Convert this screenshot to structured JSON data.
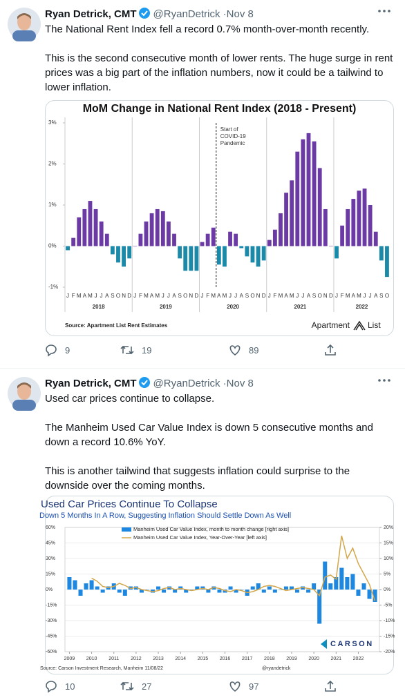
{
  "tweets": [
    {
      "author": "Ryan Detrick, CMT",
      "handle": "@RyanDetrick",
      "date": "Nov 8",
      "paragraphs": [
        "The National Rent Index fell a record 0.7% month-over-month recently.",
        "This is the second consecutive month of lower rents. The huge surge in rent prices was a big part of the inflation numbers, now it could be a tailwind to lower inflation."
      ],
      "replies": 9,
      "retweets": 19,
      "likes": 89,
      "chart": {
        "type": "bar",
        "title": "MoM Change in National Rent Index (2018 - Present)",
        "categories": [
          "J",
          "F",
          "M",
          "A",
          "M",
          "J",
          "J",
          "A",
          "S",
          "O",
          "N",
          "D",
          "J",
          "F",
          "M",
          "A",
          "M",
          "J",
          "J",
          "A",
          "S",
          "O",
          "N",
          "D",
          "J",
          "F",
          "M",
          "A",
          "M",
          "J",
          "J",
          "A",
          "S",
          "O",
          "N",
          "D",
          "J",
          "F",
          "M",
          "A",
          "M",
          "J",
          "J",
          "A",
          "S",
          "O",
          "N",
          "D",
          "J",
          "F",
          "M",
          "A",
          "M",
          "J",
          "J",
          "A",
          "S",
          "O"
        ],
        "year_labels": [
          "2018",
          "2019",
          "2020",
          "2021",
          "2022"
        ],
        "values": [
          -0.1,
          0.2,
          0.7,
          0.9,
          1.1,
          0.9,
          0.6,
          0.3,
          -0.2,
          -0.4,
          -0.5,
          -0.3,
          0.0,
          0.3,
          0.6,
          0.8,
          0.9,
          0.85,
          0.6,
          0.3,
          -0.3,
          -0.6,
          -0.6,
          -0.6,
          0.1,
          0.3,
          0.45,
          -0.45,
          -0.5,
          0.35,
          0.3,
          -0.05,
          -0.25,
          -0.4,
          -0.5,
          -0.35,
          0.15,
          0.4,
          0.8,
          1.3,
          1.6,
          2.3,
          2.6,
          2.75,
          2.55,
          1.9,
          0.9,
          0.0,
          -0.3,
          0.5,
          0.9,
          1.15,
          1.35,
          1.4,
          1.0,
          0.35,
          -0.35,
          -0.75
        ],
        "positive_color": "#6b3aa5",
        "negative_color": "#1b8aa8",
        "ylim": [
          -1,
          3
        ],
        "yticks": [
          {
            "value": -1,
            "label": "-1%"
          },
          {
            "value": 0,
            "label": "0%"
          },
          {
            "value": 1,
            "label": "1%"
          },
          {
            "value": 2,
            "label": "2%"
          },
          {
            "value": 3,
            "label": "3%"
          }
        ],
        "annotation": [
          "Start of",
          "COVID-19",
          "Pandemic"
        ],
        "source": "Source: Apartment List Rent Estimates",
        "logo": [
          "Apartment",
          "List"
        ]
      }
    },
    {
      "author": "Ryan Detrick, CMT",
      "handle": "@RyanDetrick",
      "date": "Nov 8",
      "paragraphs": [
        "Used car prices continue to collapse.",
        "The Manheim Used Car Value Index is down 5 consecutive months and down a record 10.6% YoY.",
        "This is another tailwind that suggests inflation could surprise to the downside over the coming months."
      ],
      "replies": 10,
      "retweets": 27,
      "likes": 97,
      "chart": {
        "type": "bar-line",
        "title": "Used Car Prices Continue To Collapse",
        "subtitle": "Down 5 Months In A Row, Suggesting Inflation Should Settle Down As Well",
        "x": [
          2009,
          2009.25,
          2009.5,
          2009.75,
          2010,
          2010.25,
          2010.5,
          2010.75,
          2011,
          2011.25,
          2011.5,
          2011.75,
          2012,
          2012.25,
          2012.5,
          2012.75,
          2013,
          2013.25,
          2013.5,
          2013.75,
          2014,
          2014.25,
          2014.5,
          2014.75,
          2015,
          2015.25,
          2015.5,
          2015.75,
          2016,
          2016.25,
          2016.5,
          2016.75,
          2017,
          2017.25,
          2017.5,
          2017.75,
          2018,
          2018.25,
          2018.5,
          2018.75,
          2019,
          2019.25,
          2019.5,
          2019.75,
          2020,
          2020.25,
          2020.5,
          2020.75,
          2021,
          2021.25,
          2021.5,
          2021.75,
          2022,
          2022.25,
          2022.5,
          2022.75
        ],
        "series": [
          {
            "name": "Manheim Used Car Value Index, month to month change [right axis]",
            "type": "bar",
            "axis": "y2",
            "color": "#1e87e0",
            "values": [
              4,
              3,
              -2,
              2,
              3,
              1,
              -1,
              1,
              2,
              -1,
              -2,
              1,
              1,
              -1,
              0,
              -1,
              1,
              -1,
              1,
              -1,
              1,
              -1,
              0,
              1,
              1,
              -1,
              1,
              -1,
              -1,
              1,
              -1,
              0,
              -2,
              1,
              2,
              -1,
              1,
              -1,
              0,
              1,
              1,
              -1,
              1,
              -1,
              2,
              -11,
              9,
              2,
              4,
              7,
              4,
              5,
              -2,
              2,
              -3,
              -4
            ]
          },
          {
            "name": "Manheim Used Car Value Index, Year-Over-Year [left axis]",
            "type": "line",
            "color": "#d4a64a",
            "values": [
              null,
              null,
              null,
              null,
              11,
              8,
              3,
              2,
              3,
              6,
              4,
              1,
              2,
              0,
              -1,
              -2,
              -1,
              1,
              2,
              0,
              1,
              0,
              -1,
              0,
              1,
              0,
              2,
              1,
              -1,
              -2,
              0,
              -1,
              -3,
              -2,
              0,
              3,
              4,
              3,
              1,
              -1,
              0,
              1,
              2,
              1,
              0,
              -6,
              12,
              14,
              10,
              52,
              30,
              40,
              25,
              15,
              5,
              -11
            ]
          }
        ],
        "xlim": [
          2008.8,
          2022.95
        ],
        "xticks": [
          2009,
          2010,
          2011,
          2012,
          2013,
          2014,
          2015,
          2016,
          2017,
          2018,
          2019,
          2020,
          2021,
          2022
        ],
        "ylim": [
          -60,
          60
        ],
        "yticks": [
          {
            "value": 60,
            "label": "60%"
          },
          {
            "value": 45,
            "label": "45%"
          },
          {
            "value": 30,
            "label": "30%"
          },
          {
            "value": 15,
            "label": "15%"
          },
          {
            "value": 0,
            "label": "0%"
          },
          {
            "value": -15,
            "label": "-15%"
          },
          {
            "value": -30,
            "label": "-30%"
          },
          {
            "value": -45,
            "label": "-45%"
          },
          {
            "value": -60,
            "label": "-60%"
          }
        ],
        "y2lim": [
          -20,
          20
        ],
        "y2ticks": [
          {
            "value": 20,
            "label": "20%"
          },
          {
            "value": 15,
            "label": "15%"
          },
          {
            "value": 10,
            "label": "10%"
          },
          {
            "value": 5,
            "label": "5%"
          },
          {
            "value": 0,
            "label": "0%"
          },
          {
            "value": -5,
            "label": "-5%"
          },
          {
            "value": -10,
            "label": "-10%"
          },
          {
            "value": -15,
            "label": "-15%"
          },
          {
            "value": -20,
            "label": "-20%"
          }
        ],
        "source": "Source: Carson Investment Research, Manheim  11/08/22",
        "credit": "@ryandetrick",
        "logo": "CARSON"
      }
    }
  ]
}
